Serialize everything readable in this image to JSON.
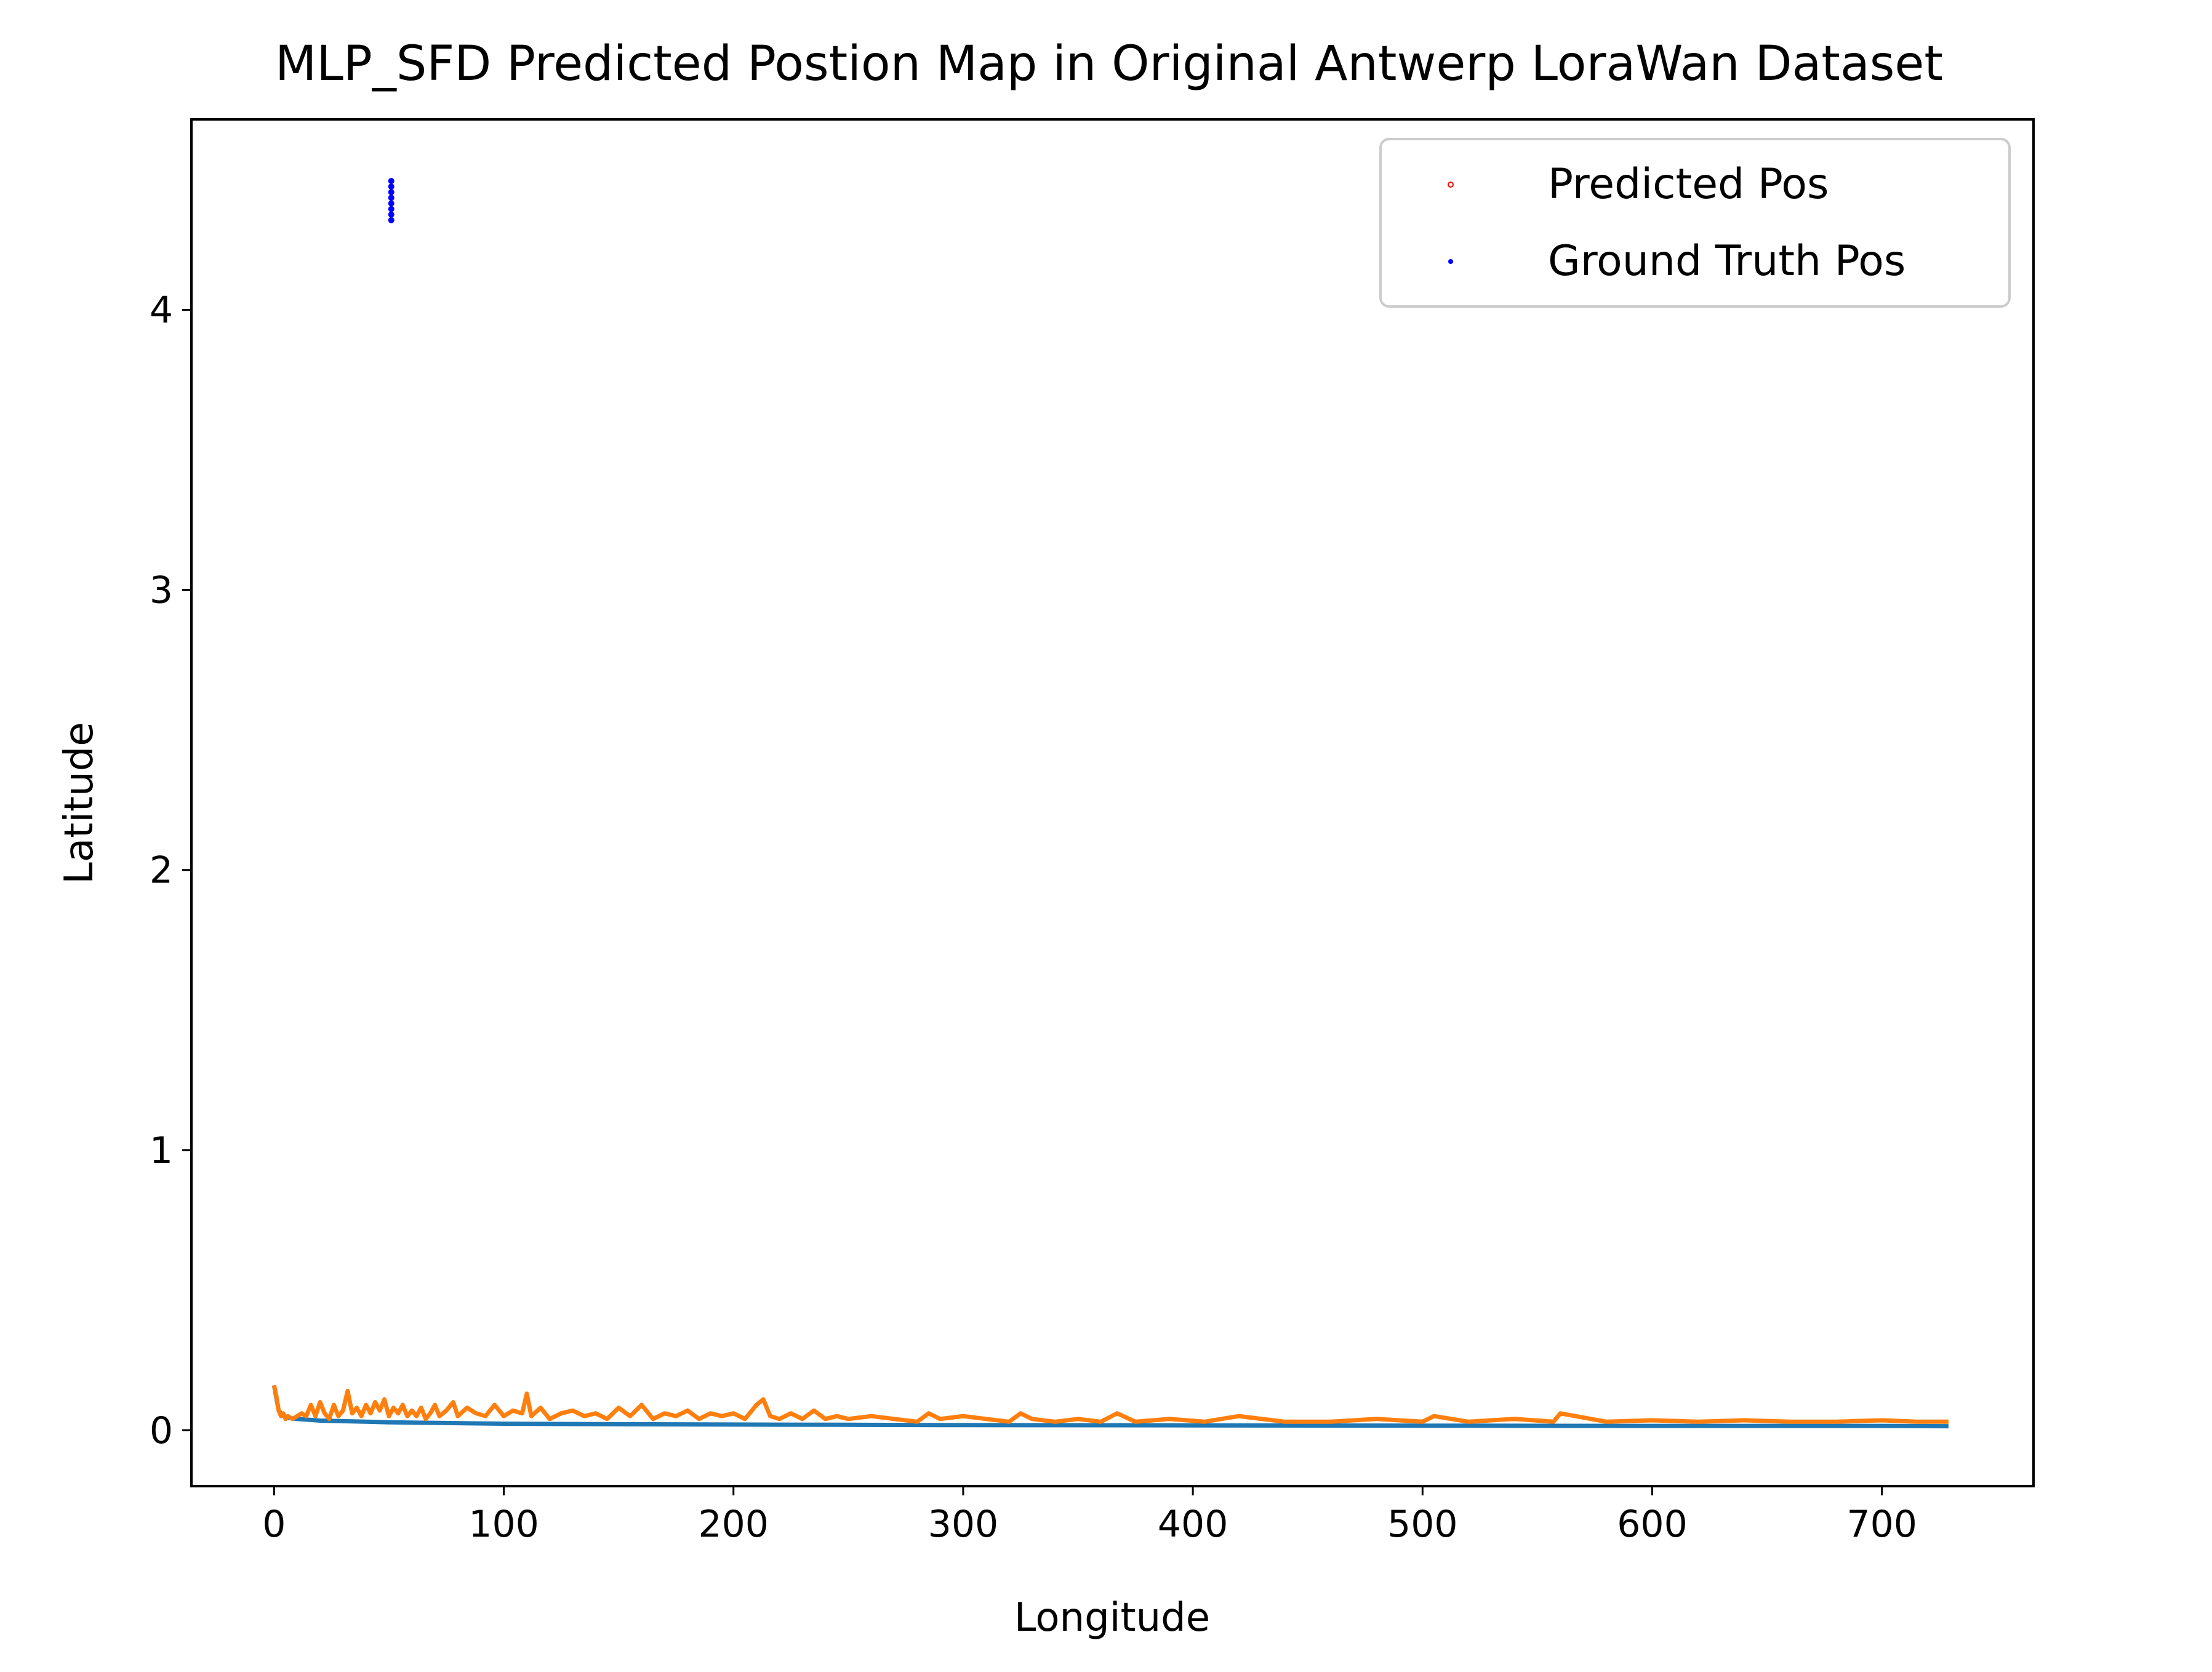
{
  "chart_data": {
    "type": "line",
    "title": "MLP_SFD Predicted Postion Map in Original Antwerp LoraWan Dataset",
    "xlabel": "Longitude",
    "ylabel": "Latitude",
    "xlim": [
      -36,
      766
    ],
    "ylim": [
      -0.2,
      4.68
    ],
    "x_ticks": [
      0,
      100,
      200,
      300,
      400,
      500,
      600,
      700
    ],
    "y_ticks": [
      0,
      1,
      2,
      3,
      4
    ],
    "x_tick_labels": [
      "0",
      "100",
      "200",
      "300",
      "400",
      "500",
      "600",
      "700"
    ],
    "y_tick_labels": [
      "0",
      "1",
      "2",
      "3",
      "4"
    ],
    "grid": false,
    "legend": {
      "placement": "upper-right",
      "entries": [
        {
          "label": "Predicted Pos",
          "color": "#ff0000",
          "marker": "open-circle"
        },
        {
          "label": "Ground Truth Pos",
          "color": "#0000ff",
          "marker": "dot"
        }
      ]
    },
    "series": [
      {
        "color": "#1f77b4",
        "x": [
          0,
          2,
          4,
          6,
          8,
          10,
          15,
          20,
          30,
          40,
          50,
          60,
          80,
          100,
          150,
          200,
          250,
          300,
          400,
          500,
          600,
          700,
          729
        ],
        "y": [
          0.16,
          0.07,
          0.05,
          0.045,
          0.042,
          0.04,
          0.037,
          0.034,
          0.032,
          0.03,
          0.028,
          0.027,
          0.025,
          0.023,
          0.021,
          0.02,
          0.019,
          0.018,
          0.017,
          0.016,
          0.015,
          0.015,
          0.014
        ]
      },
      {
        "color": "#ff7f0e",
        "x": [
          0,
          1,
          2,
          3,
          4,
          5,
          6,
          8,
          10,
          12,
          14,
          16,
          18,
          20,
          22,
          24,
          26,
          28,
          30,
          32,
          34,
          36,
          38,
          40,
          42,
          44,
          46,
          48,
          50,
          52,
          54,
          56,
          58,
          60,
          62,
          64,
          66,
          68,
          70,
          72,
          75,
          78,
          80,
          84,
          88,
          92,
          96,
          100,
          104,
          108,
          110,
          112,
          116,
          120,
          125,
          130,
          135,
          140,
          145,
          150,
          155,
          160,
          165,
          170,
          175,
          180,
          185,
          190,
          195,
          200,
          205,
          210,
          213,
          216,
          220,
          225,
          230,
          235,
          240,
          245,
          250,
          260,
          270,
          280,
          285,
          290,
          300,
          310,
          320,
          325,
          330,
          340,
          350,
          360,
          367,
          375,
          390,
          405,
          420,
          440,
          460,
          480,
          500,
          505,
          520,
          540,
          557,
          560,
          580,
          600,
          620,
          640,
          660,
          680,
          700,
          715,
          729
        ],
        "y": [
          0.16,
          0.12,
          0.07,
          0.05,
          0.06,
          0.04,
          0.05,
          0.04,
          0.05,
          0.06,
          0.05,
          0.09,
          0.05,
          0.1,
          0.06,
          0.04,
          0.09,
          0.05,
          0.07,
          0.14,
          0.06,
          0.08,
          0.05,
          0.09,
          0.06,
          0.1,
          0.07,
          0.11,
          0.05,
          0.08,
          0.06,
          0.09,
          0.05,
          0.07,
          0.05,
          0.08,
          0.04,
          0.06,
          0.09,
          0.05,
          0.07,
          0.1,
          0.05,
          0.08,
          0.06,
          0.05,
          0.09,
          0.05,
          0.07,
          0.06,
          0.13,
          0.05,
          0.08,
          0.04,
          0.06,
          0.07,
          0.05,
          0.06,
          0.04,
          0.08,
          0.05,
          0.09,
          0.04,
          0.06,
          0.05,
          0.07,
          0.04,
          0.06,
          0.05,
          0.06,
          0.04,
          0.09,
          0.11,
          0.05,
          0.04,
          0.06,
          0.04,
          0.07,
          0.04,
          0.05,
          0.04,
          0.05,
          0.04,
          0.03,
          0.06,
          0.04,
          0.05,
          0.04,
          0.03,
          0.06,
          0.04,
          0.03,
          0.04,
          0.03,
          0.06,
          0.03,
          0.04,
          0.03,
          0.05,
          0.03,
          0.03,
          0.04,
          0.03,
          0.05,
          0.03,
          0.04,
          0.03,
          0.06,
          0.03,
          0.035,
          0.03,
          0.035,
          0.03,
          0.03,
          0.035,
          0.03,
          0.03
        ]
      }
    ],
    "scatter": [
      {
        "name": "Ground Truth Pos",
        "color": "#0000ff",
        "points": [
          [
            51,
            4.32
          ],
          [
            51,
            4.34
          ],
          [
            51,
            4.36
          ],
          [
            51,
            4.38
          ],
          [
            51,
            4.4
          ],
          [
            51,
            4.42
          ],
          [
            51,
            4.44
          ],
          [
            51,
            4.46
          ]
        ]
      }
    ]
  }
}
